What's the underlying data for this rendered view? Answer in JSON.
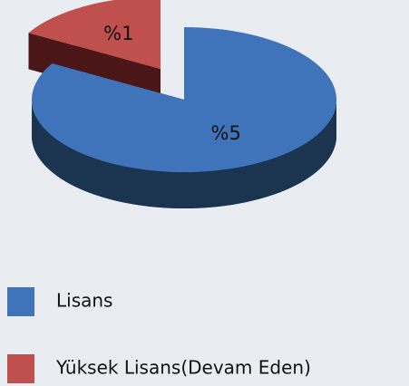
{
  "chart_data": {
    "type": "pie3d",
    "categories": [
      "Lisans",
      "Yüksek Lisans(Devam Eden)"
    ],
    "values": [
      5,
      1
    ],
    "value_labels": [
      "%5",
      "%1"
    ],
    "colors": [
      "#3f74bb",
      "#c0504d"
    ],
    "side_colors": [
      "#1b3450",
      "#4a1618"
    ],
    "legend": "bottom"
  }
}
